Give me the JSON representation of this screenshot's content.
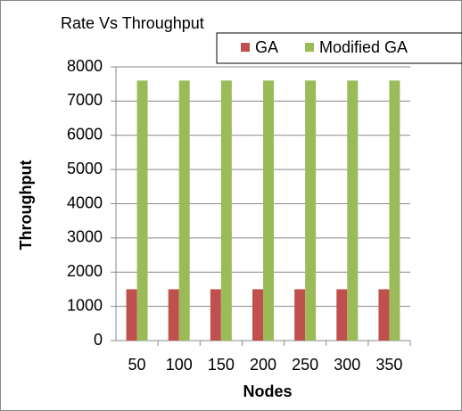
{
  "chart_data": {
    "type": "bar",
    "title": "Rate Vs Throughput",
    "x_label": "Nodes",
    "y_label": "Throughput",
    "categories": [
      "50",
      "100",
      "150",
      "200",
      "250",
      "300",
      "350"
    ],
    "series": [
      {
        "name": "GA",
        "color": "#c0504d",
        "values": [
          1500,
          1500,
          1500,
          1500,
          1500,
          1500,
          1500
        ]
      },
      {
        "name": "Modified GA",
        "color": "#9bbb59",
        "values": [
          7600,
          7600,
          7600,
          7600,
          7600,
          7600,
          7600
        ]
      }
    ],
    "ylim": [
      0,
      8000
    ],
    "yticks": [
      0,
      1000,
      2000,
      3000,
      4000,
      5000,
      6000,
      7000,
      8000
    ],
    "grid": true
  }
}
